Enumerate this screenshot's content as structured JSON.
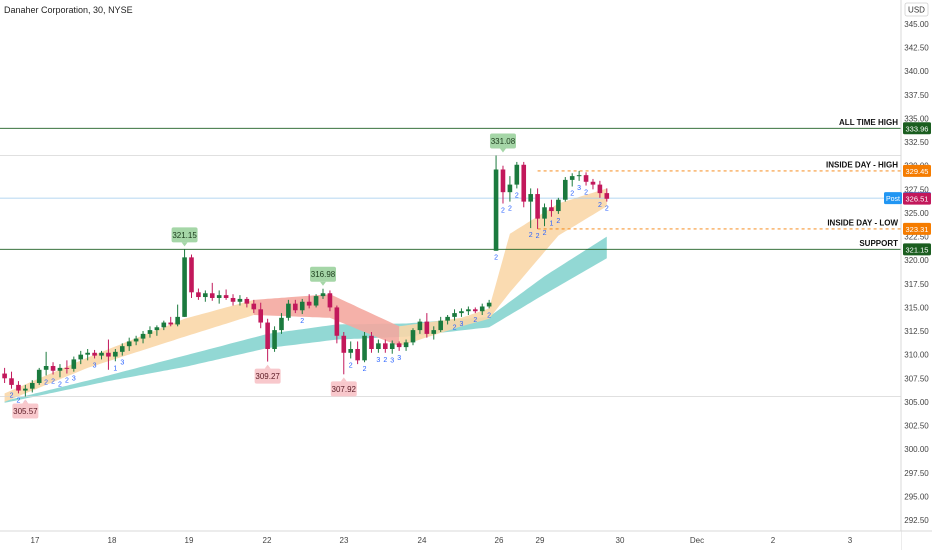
{
  "header": {
    "title": "Danaher Corporation, 30, NYSE"
  },
  "price_axis": {
    "currency": "USD",
    "ticks": [
      "345.00",
      "342.50",
      "340.00",
      "337.50",
      "335.00",
      "332.50",
      "330.00",
      "327.50",
      "325.00",
      "322.50",
      "320.00",
      "317.50",
      "315.00",
      "312.50",
      "310.00",
      "307.50",
      "305.00",
      "302.50",
      "300.00",
      "297.50",
      "295.00",
      "292.50"
    ]
  },
  "time_axis": {
    "ticks": [
      "17",
      "18",
      "19",
      "22",
      "23",
      "24",
      "26",
      "29",
      "30",
      "Dec",
      "2",
      "3"
    ]
  },
  "levels": [
    {
      "label": "ALL TIME HIGH",
      "value": "333.96",
      "color": "#1b5e20"
    },
    {
      "label": "INSIDE DAY - HIGH",
      "value": "329.45",
      "color": "#f57c00"
    },
    {
      "label": "INSIDE DAY - LOW",
      "value": "323.31",
      "color": "#f57c00"
    },
    {
      "label": "SUPPORT",
      "value": "321.15",
      "color": "#1b5e20"
    }
  ],
  "price_tags": {
    "post_label": "Post",
    "post_value": "326.57",
    "last_value": "326.51"
  },
  "annotations": [
    {
      "text": "331.08",
      "kind": "high"
    },
    {
      "text": "321.15",
      "kind": "high"
    },
    {
      "text": "316.98",
      "kind": "high"
    },
    {
      "text": "305.57",
      "kind": "low"
    },
    {
      "text": "309.27",
      "kind": "low"
    },
    {
      "text": "307.92",
      "kind": "low"
    }
  ],
  "colors": {
    "up": "#1b7a3e",
    "down": "#c2185b",
    "ribbon_slow": "#7fd1cc",
    "ribbon_fast_up": "#f9d7a8",
    "ribbon_fast_down": "#f4a9a0",
    "high_badge": "#a5d6a7",
    "low_badge": "#f8c8cc",
    "post": "#2196f3",
    "last": "#c2185b"
  },
  "chart_data": {
    "type": "candlestick",
    "title": "Danaher Corporation, 30, NYSE",
    "ylim": [
      291.7,
      346.3
    ],
    "y_scale": "linear",
    "grid": false,
    "legend": "none",
    "sessions": [
      "17",
      "18",
      "19",
      "22",
      "23",
      "24",
      "26",
      "29",
      "30"
    ],
    "swing_highs": [
      331.08,
      321.15,
      316.98
    ],
    "swing_lows": [
      305.57,
      309.27,
      307.92
    ],
    "levels": {
      "all_time_high": 333.96,
      "inside_day_high": 329.45,
      "inside_day_low": 323.31,
      "support": 321.15,
      "post_market": 326.57,
      "last": 326.51
    },
    "candles": [
      {
        "o": 308.0,
        "h": 308.6,
        "l": 307.0,
        "c": 307.5
      },
      {
        "o": 307.5,
        "h": 308.2,
        "l": 306.4,
        "c": 306.8
      },
      {
        "o": 306.8,
        "h": 307.2,
        "l": 305.9,
        "c": 306.2
      },
      {
        "o": 306.2,
        "h": 306.8,
        "l": 305.57,
        "c": 306.4
      },
      {
        "o": 306.4,
        "h": 307.3,
        "l": 306.0,
        "c": 307.0
      },
      {
        "o": 307.0,
        "h": 308.6,
        "l": 306.8,
        "c": 308.4
      },
      {
        "o": 308.4,
        "h": 310.3,
        "l": 307.8,
        "c": 308.8
      },
      {
        "o": 308.8,
        "h": 309.2,
        "l": 307.9,
        "c": 308.3
      },
      {
        "o": 308.3,
        "h": 309.0,
        "l": 307.6,
        "c": 308.6
      },
      {
        "o": 308.6,
        "h": 309.4,
        "l": 308.0,
        "c": 308.5
      },
      {
        "o": 308.5,
        "h": 309.8,
        "l": 308.2,
        "c": 309.5
      },
      {
        "o": 309.5,
        "h": 310.4,
        "l": 309.0,
        "c": 310.0
      },
      {
        "o": 310.0,
        "h": 310.6,
        "l": 309.4,
        "c": 310.2
      },
      {
        "o": 310.2,
        "h": 310.5,
        "l": 309.6,
        "c": 309.9
      },
      {
        "o": 309.9,
        "h": 310.4,
        "l": 309.5,
        "c": 310.2
      },
      {
        "o": 310.2,
        "h": 311.6,
        "l": 308.4,
        "c": 309.8
      },
      {
        "o": 309.8,
        "h": 310.6,
        "l": 309.3,
        "c": 310.3
      },
      {
        "o": 310.3,
        "h": 311.2,
        "l": 309.9,
        "c": 310.9
      },
      {
        "o": 310.9,
        "h": 311.8,
        "l": 310.4,
        "c": 311.4
      },
      {
        "o": 311.4,
        "h": 312.0,
        "l": 311.0,
        "c": 311.7
      },
      {
        "o": 311.7,
        "h": 312.5,
        "l": 311.2,
        "c": 312.2
      },
      {
        "o": 312.2,
        "h": 313.0,
        "l": 311.8,
        "c": 312.6
      },
      {
        "o": 312.6,
        "h": 313.1,
        "l": 312.0,
        "c": 312.9
      },
      {
        "o": 312.9,
        "h": 313.6,
        "l": 312.6,
        "c": 313.4
      },
      {
        "o": 313.4,
        "h": 314.0,
        "l": 313.0,
        "c": 313.2
      },
      {
        "o": 313.2,
        "h": 315.3,
        "l": 313.0,
        "c": 314.0
      },
      {
        "o": 314.0,
        "h": 321.15,
        "l": 314.0,
        "c": 320.3
      },
      {
        "o": 320.3,
        "h": 320.6,
        "l": 316.0,
        "c": 316.6
      },
      {
        "o": 316.6,
        "h": 317.0,
        "l": 315.8,
        "c": 316.1
      },
      {
        "o": 316.1,
        "h": 316.8,
        "l": 315.6,
        "c": 316.5
      },
      {
        "o": 316.5,
        "h": 317.6,
        "l": 315.7,
        "c": 316.0
      },
      {
        "o": 316.0,
        "h": 316.8,
        "l": 315.4,
        "c": 316.3
      },
      {
        "o": 316.3,
        "h": 316.9,
        "l": 315.8,
        "c": 316.0
      },
      {
        "o": 316.0,
        "h": 316.4,
        "l": 315.2,
        "c": 315.6
      },
      {
        "o": 315.6,
        "h": 316.3,
        "l": 315.2,
        "c": 315.9
      },
      {
        "o": 315.9,
        "h": 316.1,
        "l": 315.0,
        "c": 315.4
      },
      {
        "o": 315.4,
        "h": 315.8,
        "l": 314.4,
        "c": 314.8
      },
      {
        "o": 314.8,
        "h": 315.5,
        "l": 312.8,
        "c": 313.4
      },
      {
        "o": 313.4,
        "h": 313.8,
        "l": 309.27,
        "c": 310.6
      },
      {
        "o": 310.6,
        "h": 313.0,
        "l": 310.3,
        "c": 312.6
      },
      {
        "o": 312.6,
        "h": 314.4,
        "l": 312.2,
        "c": 313.9
      },
      {
        "o": 313.9,
        "h": 315.8,
        "l": 313.6,
        "c": 315.4
      },
      {
        "o": 315.4,
        "h": 315.8,
        "l": 314.4,
        "c": 314.7
      },
      {
        "o": 314.7,
        "h": 315.9,
        "l": 314.3,
        "c": 315.6
      },
      {
        "o": 315.6,
        "h": 316.4,
        "l": 314.9,
        "c": 315.2
      },
      {
        "o": 315.2,
        "h": 316.4,
        "l": 315.0,
        "c": 316.2
      },
      {
        "o": 316.2,
        "h": 316.98,
        "l": 315.9,
        "c": 316.5
      },
      {
        "o": 316.5,
        "h": 316.8,
        "l": 314.6,
        "c": 315.0
      },
      {
        "o": 315.0,
        "h": 315.2,
        "l": 311.2,
        "c": 312.0
      },
      {
        "o": 312.0,
        "h": 312.4,
        "l": 307.92,
        "c": 310.2
      },
      {
        "o": 310.2,
        "h": 311.4,
        "l": 309.6,
        "c": 310.6
      },
      {
        "o": 310.6,
        "h": 311.4,
        "l": 309.0,
        "c": 309.4
      },
      {
        "o": 309.4,
        "h": 312.4,
        "l": 309.2,
        "c": 312.0
      },
      {
        "o": 312.0,
        "h": 312.4,
        "l": 310.2,
        "c": 310.6
      },
      {
        "o": 310.6,
        "h": 311.6,
        "l": 310.2,
        "c": 311.2
      },
      {
        "o": 311.2,
        "h": 311.6,
        "l": 310.2,
        "c": 310.6
      },
      {
        "o": 310.6,
        "h": 311.5,
        "l": 310.1,
        "c": 311.2
      },
      {
        "o": 311.2,
        "h": 311.4,
        "l": 310.4,
        "c": 310.8
      },
      {
        "o": 310.8,
        "h": 311.6,
        "l": 310.4,
        "c": 311.3
      },
      {
        "o": 311.3,
        "h": 312.8,
        "l": 311.0,
        "c": 312.6
      },
      {
        "o": 312.6,
        "h": 313.8,
        "l": 312.2,
        "c": 313.5
      },
      {
        "o": 313.5,
        "h": 314.4,
        "l": 311.8,
        "c": 312.2
      },
      {
        "o": 312.2,
        "h": 313.0,
        "l": 311.6,
        "c": 312.6
      },
      {
        "o": 312.6,
        "h": 314.0,
        "l": 312.4,
        "c": 313.6
      },
      {
        "o": 313.6,
        "h": 314.2,
        "l": 313.2,
        "c": 314.0
      },
      {
        "o": 314.0,
        "h": 314.8,
        "l": 313.6,
        "c": 314.4
      },
      {
        "o": 314.4,
        "h": 314.9,
        "l": 314.0,
        "c": 314.6
      },
      {
        "o": 314.6,
        "h": 315.1,
        "l": 314.2,
        "c": 314.8
      },
      {
        "o": 314.8,
        "h": 315.0,
        "l": 314.4,
        "c": 314.6
      },
      {
        "o": 314.6,
        "h": 315.4,
        "l": 314.2,
        "c": 315.1
      },
      {
        "o": 315.1,
        "h": 315.8,
        "l": 314.9,
        "c": 315.5
      },
      {
        "o": 321.0,
        "h": 331.08,
        "l": 321.0,
        "c": 329.6
      },
      {
        "o": 329.6,
        "h": 330.0,
        "l": 326.0,
        "c": 327.2
      },
      {
        "o": 327.2,
        "h": 328.9,
        "l": 326.2,
        "c": 328.0
      },
      {
        "o": 328.0,
        "h": 330.4,
        "l": 327.6,
        "c": 330.1
      },
      {
        "o": 330.1,
        "h": 330.4,
        "l": 325.6,
        "c": 326.2
      },
      {
        "o": 326.2,
        "h": 327.6,
        "l": 323.4,
        "c": 327.0
      },
      {
        "o": 327.0,
        "h": 327.6,
        "l": 323.31,
        "c": 324.4
      },
      {
        "o": 324.4,
        "h": 326.0,
        "l": 323.6,
        "c": 325.6
      },
      {
        "o": 325.6,
        "h": 326.4,
        "l": 324.6,
        "c": 325.2
      },
      {
        "o": 325.2,
        "h": 326.6,
        "l": 324.9,
        "c": 326.4
      },
      {
        "o": 326.4,
        "h": 328.8,
        "l": 326.2,
        "c": 328.5
      },
      {
        "o": 328.5,
        "h": 329.2,
        "l": 327.8,
        "c": 328.9
      },
      {
        "o": 328.9,
        "h": 329.45,
        "l": 328.4,
        "c": 329.0
      },
      {
        "o": 329.0,
        "h": 329.3,
        "l": 327.9,
        "c": 328.3
      },
      {
        "o": 328.3,
        "h": 328.6,
        "l": 327.5,
        "c": 328.0
      },
      {
        "o": 328.0,
        "h": 328.4,
        "l": 326.6,
        "c": 327.1
      },
      {
        "o": 327.1,
        "h": 327.6,
        "l": 326.2,
        "c": 326.5
      }
    ],
    "ribbon_slow": [
      {
        "i": 0,
        "lo": 304.9,
        "hi": 305.1
      },
      {
        "i": 15,
        "lo": 307.2,
        "hi": 307.8
      },
      {
        "i": 26,
        "lo": 308.7,
        "hi": 309.9
      },
      {
        "i": 38,
        "lo": 310.7,
        "hi": 312.2
      },
      {
        "i": 48,
        "lo": 311.6,
        "hi": 313.2
      },
      {
        "i": 58,
        "lo": 311.9,
        "hi": 313.3
      },
      {
        "i": 70,
        "lo": 312.9,
        "hi": 314.0
      },
      {
        "i": 78,
        "lo": 316.4,
        "hi": 318.3
      },
      {
        "i": 87,
        "lo": 320.2,
        "hi": 322.5
      }
    ],
    "ribbon_fast": [
      {
        "i": 0,
        "lo": 305.0,
        "hi": 305.9
      },
      {
        "i": 12,
        "lo": 308.6,
        "hi": 309.7
      },
      {
        "i": 26,
        "lo": 311.9,
        "hi": 313.8
      },
      {
        "i": 36,
        "lo": 314.2,
        "hi": 315.8
      },
      {
        "i": 47,
        "lo": 313.9,
        "hi": 316.4
      },
      {
        "i": 57,
        "lo": 310.9,
        "hi": 313.0
      },
      {
        "i": 66,
        "lo": 313.0,
        "hi": 313.9
      },
      {
        "i": 70,
        "lo": 313.8,
        "hi": 314.9
      },
      {
        "i": 73,
        "lo": 316.6,
        "hi": 322.8
      },
      {
        "i": 80,
        "lo": 322.6,
        "hi": 326.0
      },
      {
        "i": 87,
        "lo": 325.7,
        "hi": 327.6
      }
    ],
    "sequence_labels": [
      {
        "i": 1,
        "text": "2"
      },
      {
        "i": 2,
        "text": "2"
      },
      {
        "i": 3,
        "text": "2"
      },
      {
        "i": 6,
        "text": "2"
      },
      {
        "i": 7,
        "text": "2"
      },
      {
        "i": 8,
        "text": "2"
      },
      {
        "i": 9,
        "text": "2"
      },
      {
        "i": 10,
        "text": "3"
      },
      {
        "i": 13,
        "text": "3"
      },
      {
        "i": 16,
        "text": "1"
      },
      {
        "i": 17,
        "text": "3"
      },
      {
        "i": 43,
        "text": "2"
      },
      {
        "i": 50,
        "text": "2"
      },
      {
        "i": 52,
        "text": "2"
      },
      {
        "i": 54,
        "text": "3"
      },
      {
        "i": 55,
        "text": "2"
      },
      {
        "i": 56,
        "text": "3"
      },
      {
        "i": 57,
        "text": "3"
      },
      {
        "i": 65,
        "text": "2"
      },
      {
        "i": 66,
        "text": "3"
      },
      {
        "i": 68,
        "text": "2"
      },
      {
        "i": 70,
        "text": "2"
      },
      {
        "i": 71,
        "text": "2"
      },
      {
        "i": 72,
        "text": "2"
      },
      {
        "i": 73,
        "text": "2"
      },
      {
        "i": 74,
        "text": "2"
      },
      {
        "i": 76,
        "text": "2"
      },
      {
        "i": 77,
        "text": "2"
      },
      {
        "i": 78,
        "text": "2"
      },
      {
        "i": 79,
        "text": "1"
      },
      {
        "i": 80,
        "text": "2"
      },
      {
        "i": 82,
        "text": "2"
      },
      {
        "i": 83,
        "text": "3"
      },
      {
        "i": 84,
        "text": "2"
      },
      {
        "i": 86,
        "text": "2"
      },
      {
        "i": 87,
        "text": "2"
      }
    ]
  }
}
